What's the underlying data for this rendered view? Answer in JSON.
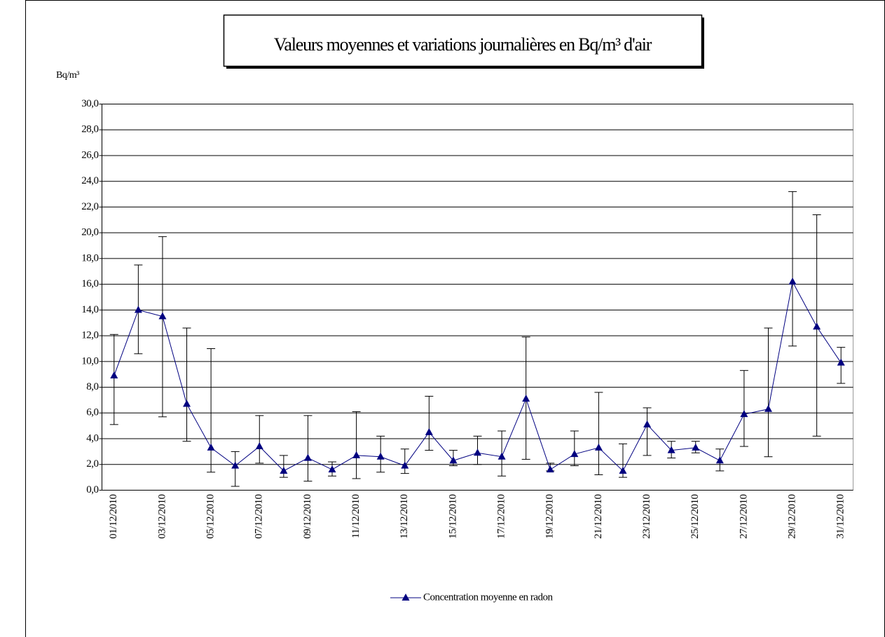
{
  "chart_data": {
    "type": "line",
    "title": "Valeurs moyennes et variations journalières en Bq/m³ d'air",
    "y_label": "Bq/m³",
    "categories": [
      "01/12/2010",
      null,
      "03/12/2010",
      null,
      "05/12/2010",
      null,
      "07/12/2010",
      null,
      "09/12/2010",
      null,
      "11/12/2010",
      null,
      "13/12/2010",
      null,
      "15/12/2010",
      null,
      "17/12/2010",
      null,
      "19/12/2010",
      null,
      "21/12/2010",
      null,
      "23/12/2010",
      null,
      "25/12/2010",
      null,
      "27/12/2010",
      null,
      "29/12/2010",
      null,
      "31/12/2010"
    ],
    "series": [
      {
        "name": "Concentration moyenne en radon",
        "color": "#000080",
        "values": [
          8.9,
          14.0,
          13.5,
          6.7,
          3.3,
          1.9,
          3.4,
          1.5,
          2.5,
          1.6,
          2.7,
          2.6,
          1.9,
          4.5,
          2.3,
          2.9,
          2.6,
          7.1,
          1.6,
          2.8,
          3.3,
          1.5,
          5.1,
          3.1,
          3.3,
          2.3,
          5.9,
          6.3,
          16.2,
          12.7,
          9.9
        ],
        "low": [
          5.1,
          10.6,
          5.7,
          3.8,
          1.4,
          0.3,
          2.1,
          1.0,
          0.7,
          1.1,
          0.9,
          1.4,
          1.3,
          3.1,
          1.9,
          2.0,
          1.1,
          2.4,
          1.5,
          1.9,
          1.2,
          1.0,
          2.7,
          2.5,
          2.9,
          1.5,
          3.4,
          2.6,
          11.2,
          4.2,
          8.3
        ],
        "high": [
          12.1,
          17.5,
          19.7,
          12.6,
          11.0,
          3.0,
          5.8,
          2.7,
          5.8,
          2.2,
          6.1,
          4.2,
          3.2,
          7.3,
          3.1,
          4.2,
          4.6,
          11.9,
          2.1,
          4.6,
          7.6,
          3.6,
          6.4,
          3.8,
          3.8,
          3.2,
          9.3,
          12.6,
          23.2,
          21.4,
          11.1
        ]
      }
    ],
    "ylim": [
      0,
      30
    ],
    "yticks": [
      {
        "value": 0,
        "label": "0,0"
      },
      {
        "value": 2,
        "label": "2,0"
      },
      {
        "value": 4,
        "label": "4,0"
      },
      {
        "value": 6,
        "label": "6,0"
      },
      {
        "value": 8,
        "label": "8,0"
      },
      {
        "value": 10,
        "label": "10,0"
      },
      {
        "value": 12,
        "label": "12,0"
      },
      {
        "value": 14,
        "label": "14,0"
      },
      {
        "value": 16,
        "label": "16,0"
      },
      {
        "value": 18,
        "label": "18,0"
      },
      {
        "value": 20,
        "label": "20,0"
      },
      {
        "value": 22,
        "label": "22,0"
      },
      {
        "value": 24,
        "label": "24,0"
      },
      {
        "value": 26,
        "label": "26,0"
      },
      {
        "value": 28,
        "label": "28,0"
      },
      {
        "value": 30,
        "label": "30,0"
      }
    ],
    "grid": true,
    "legend": "bottom"
  }
}
